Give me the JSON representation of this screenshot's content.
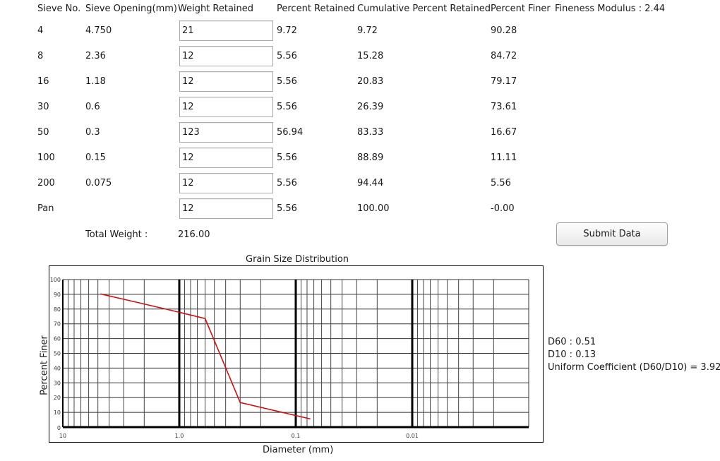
{
  "headers": {
    "sieve_no": "Sieve No.",
    "sieve_opening": "Sieve Opening(mm)",
    "weight_retained": "Weight Retained",
    "percent_retained": "Percent Retained",
    "cumulative": "Cumulative Percent Retained",
    "percent_finer": "Percent Finer",
    "fineness_modulus": "Fineness Modulus : 2.44"
  },
  "rows": [
    {
      "sieve": "4",
      "opening": "4.750",
      "weight": "21",
      "pr": "9.72",
      "cpr": "9.72",
      "pf": "90.28"
    },
    {
      "sieve": "8",
      "opening": "2.36",
      "weight": "12",
      "pr": "5.56",
      "cpr": "15.28",
      "pf": "84.72"
    },
    {
      "sieve": "16",
      "opening": "1.18",
      "weight": "12",
      "pr": "5.56",
      "cpr": "20.83",
      "pf": "79.17"
    },
    {
      "sieve": "30",
      "opening": "0.6",
      "weight": "12",
      "pr": "5.56",
      "cpr": "26.39",
      "pf": "73.61"
    },
    {
      "sieve": "50",
      "opening": "0.3",
      "weight": "123",
      "pr": "56.94",
      "cpr": "83.33",
      "pf": "16.67"
    },
    {
      "sieve": "100",
      "opening": "0.15",
      "weight": "12",
      "pr": "5.56",
      "cpr": "88.89",
      "pf": "11.11"
    },
    {
      "sieve": "200",
      "opening": "0.075",
      "weight": "12",
      "pr": "5.56",
      "cpr": "94.44",
      "pf": "5.56"
    },
    {
      "sieve": "Pan",
      "opening": "",
      "weight": "12",
      "pr": "5.56",
      "cpr": "100.00",
      "pf": "-0.00"
    }
  ],
  "total": {
    "label": "Total Weight :",
    "value": "216.00"
  },
  "submit_label": "Submit Data",
  "results": {
    "d60": "D60 : 0.51",
    "d10": "D10 : 0.13",
    "cu": "Uniform Coefficient (D60/D10) = 3.92"
  },
  "chart_data": {
    "type": "line",
    "title": "Grain Size Distribution",
    "xlabel": "Diameter (mm)",
    "ylabel": "Percent Finer",
    "x_scale": "log-reversed",
    "xlim": [
      10,
      0.001
    ],
    "ylim": [
      0,
      100
    ],
    "x_ticks": [
      "10",
      "1.0",
      "0.1",
      "0.01"
    ],
    "y_ticks": [
      "0",
      "10",
      "20",
      "30",
      "40",
      "50",
      "60",
      "70",
      "80",
      "90",
      "100"
    ],
    "grid": true,
    "line_color": "#cc1111",
    "series": [
      {
        "x": [
          4.75,
          2.36,
          1.18,
          0.6,
          0.3,
          0.15,
          0.075
        ],
        "y": [
          90.28,
          84.72,
          79.17,
          73.61,
          16.67,
          11.11,
          5.56
        ]
      }
    ]
  }
}
